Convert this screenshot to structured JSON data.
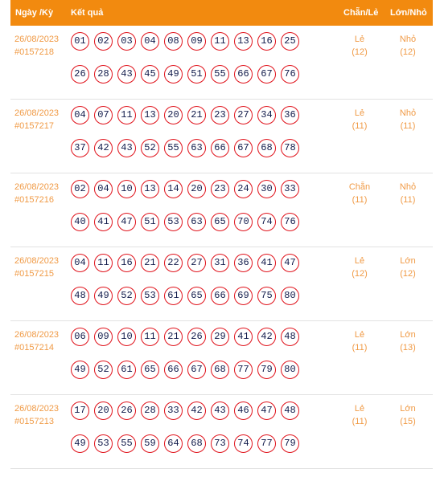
{
  "header": {
    "date_label": "Ngày /Kỳ",
    "result_label": "Kết quả",
    "chanle_label": "Chẵn/Lẻ",
    "lonnho_label": "Lớn/Nhỏ"
  },
  "colors": {
    "header_bg": "#f28a0f",
    "accent_text": "#f09a45",
    "ball_border": "#e0121b"
  },
  "rows": [
    {
      "date": "26/08/2023",
      "draw": "#0157218",
      "numbers_top": [
        "01",
        "02",
        "03",
        "04",
        "08",
        "09",
        "11",
        "13",
        "16",
        "25"
      ],
      "numbers_bottom": [
        "26",
        "28",
        "43",
        "45",
        "49",
        "51",
        "55",
        "66",
        "67",
        "76"
      ],
      "chanle": "Lẻ",
      "chanle_count": "(12)",
      "lonnho": "Nhỏ",
      "lonnho_count": "(12)"
    },
    {
      "date": "26/08/2023",
      "draw": "#0157217",
      "numbers_top": [
        "04",
        "07",
        "11",
        "13",
        "20",
        "21",
        "23",
        "27",
        "34",
        "36"
      ],
      "numbers_bottom": [
        "37",
        "42",
        "43",
        "52",
        "55",
        "63",
        "66",
        "67",
        "68",
        "78"
      ],
      "chanle": "Lẻ",
      "chanle_count": "(11)",
      "lonnho": "Nhỏ",
      "lonnho_count": "(11)"
    },
    {
      "date": "26/08/2023",
      "draw": "#0157216",
      "numbers_top": [
        "02",
        "04",
        "10",
        "13",
        "14",
        "20",
        "23",
        "24",
        "30",
        "33"
      ],
      "numbers_bottom": [
        "40",
        "41",
        "47",
        "51",
        "53",
        "63",
        "65",
        "70",
        "74",
        "76"
      ],
      "chanle": "Chẵn",
      "chanle_count": "(11)",
      "lonnho": "Nhỏ",
      "lonnho_count": "(11)"
    },
    {
      "date": "26/08/2023",
      "draw": "#0157215",
      "numbers_top": [
        "04",
        "11",
        "16",
        "21",
        "22",
        "27",
        "31",
        "36",
        "41",
        "47"
      ],
      "numbers_bottom": [
        "48",
        "49",
        "52",
        "53",
        "61",
        "65",
        "66",
        "69",
        "75",
        "80"
      ],
      "chanle": "Lẻ",
      "chanle_count": "(12)",
      "lonnho": "Lớn",
      "lonnho_count": "(12)"
    },
    {
      "date": "26/08/2023",
      "draw": "#0157214",
      "numbers_top": [
        "06",
        "09",
        "10",
        "11",
        "21",
        "26",
        "29",
        "41",
        "42",
        "48"
      ],
      "numbers_bottom": [
        "49",
        "52",
        "61",
        "65",
        "66",
        "67",
        "68",
        "77",
        "79",
        "80"
      ],
      "chanle": "Lẻ",
      "chanle_count": "(11)",
      "lonnho": "Lớn",
      "lonnho_count": "(13)"
    },
    {
      "date": "26/08/2023",
      "draw": "#0157213",
      "numbers_top": [
        "17",
        "20",
        "26",
        "28",
        "33",
        "42",
        "43",
        "46",
        "47",
        "48"
      ],
      "numbers_bottom": [
        "49",
        "53",
        "55",
        "59",
        "64",
        "68",
        "73",
        "74",
        "77",
        "79"
      ],
      "chanle": "Lẻ",
      "chanle_count": "(11)",
      "lonnho": "Lớn",
      "lonnho_count": "(15)"
    }
  ]
}
